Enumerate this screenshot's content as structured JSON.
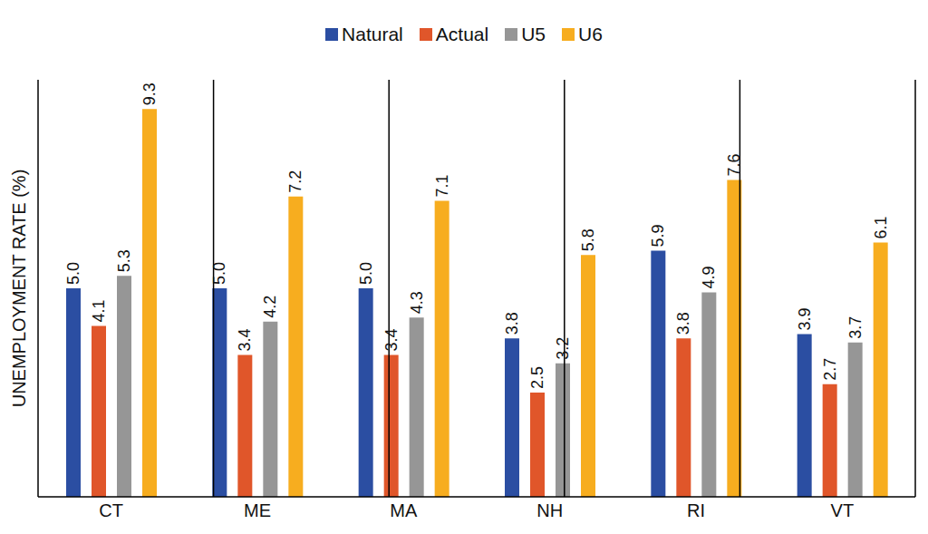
{
  "chart_data": {
    "type": "bar",
    "y_label": "UNEMPLOYMENT RATE (%)",
    "categories": [
      "CT",
      "ME",
      "MA",
      "NH",
      "RI",
      "VT"
    ],
    "series": [
      {
        "name": "Natural",
        "color": "#2b4ea2",
        "values": [
          5.0,
          5.0,
          5.0,
          3.8,
          5.9,
          3.9
        ],
        "value_labels": [
          "5.0",
          "5.0",
          "5.0",
          "3.8",
          "5.9",
          "3.9"
        ]
      },
      {
        "name": "Actual",
        "color": "#e0562a",
        "values": [
          4.1,
          3.4,
          3.4,
          2.5,
          3.8,
          2.7
        ],
        "value_labels": [
          "4.1",
          "3.4",
          "3.4",
          "2.5",
          "3.8",
          "2.7"
        ]
      },
      {
        "name": "U5",
        "color": "#969696",
        "values": [
          5.3,
          4.2,
          4.3,
          3.2,
          4.9,
          3.7
        ],
        "value_labels": [
          "5.3",
          "4.2",
          "4.3",
          "3.2",
          "4.9",
          "3.7"
        ]
      },
      {
        "name": "U6",
        "color": "#f7ad1f",
        "values": [
          9.3,
          7.2,
          7.1,
          5.8,
          7.6,
          6.1
        ],
        "value_labels": [
          "9.3",
          "7.2",
          "7.1",
          "5.8",
          "7.6",
          "6.1"
        ]
      }
    ],
    "ylim": [
      0,
      10
    ],
    "tick_labels": "x",
    "data_labels": true,
    "grid": false,
    "legend": "top"
  }
}
